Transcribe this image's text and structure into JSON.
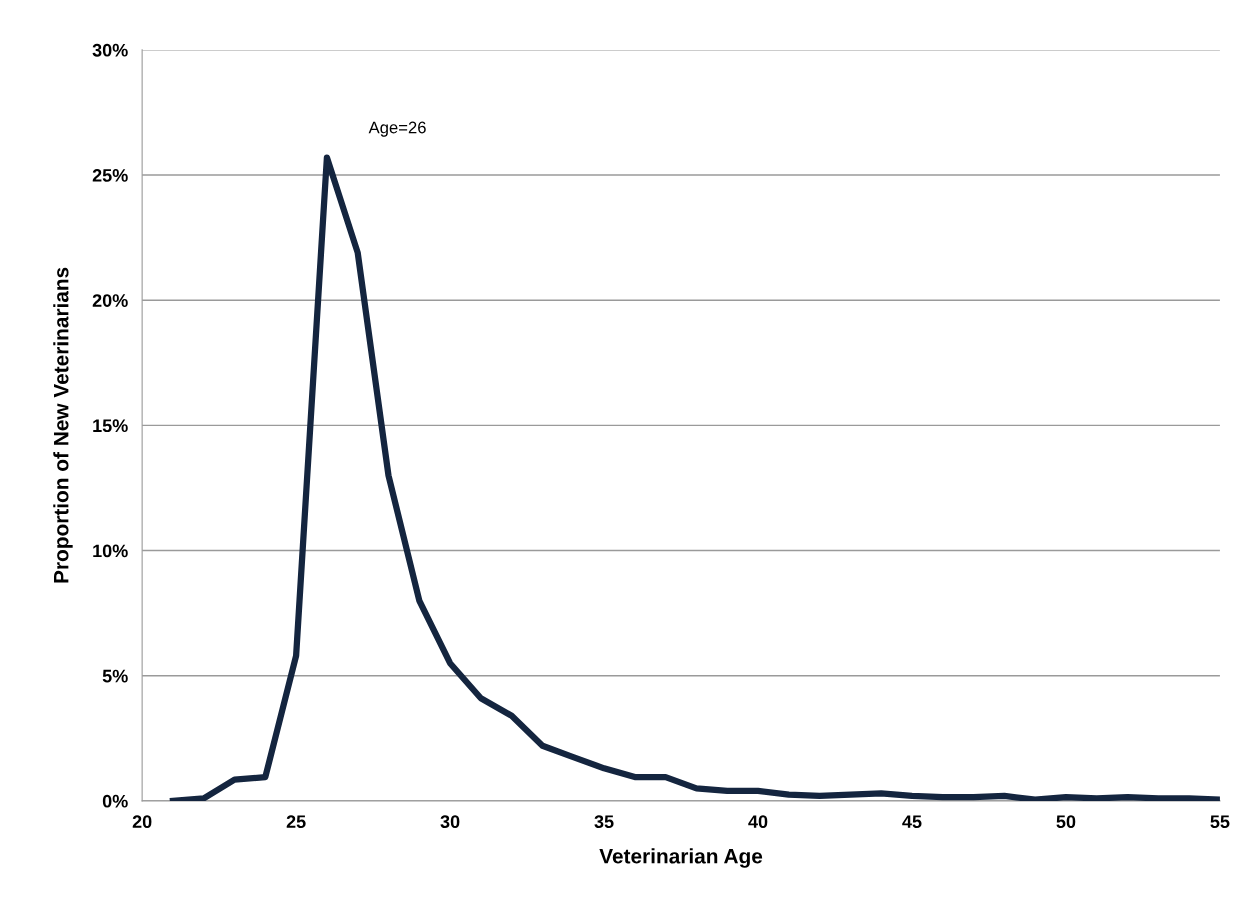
{
  "chart_data": {
    "type": "line",
    "xlabel": "Veterinarian Age",
    "ylabel": "Proportion of New Veterinarians",
    "x": [
      21,
      22,
      23,
      24,
      25,
      26,
      27,
      28,
      29,
      30,
      31,
      32,
      33,
      34,
      35,
      36,
      37,
      38,
      39,
      40,
      41,
      42,
      43,
      44,
      45,
      46,
      47,
      48,
      49,
      50,
      51,
      52,
      53,
      54,
      55
    ],
    "series": [
      {
        "color": "#14253f",
        "values": [
          0,
          0.1,
          0.85,
          0.95,
          5.8,
          25.7,
          21.9,
          13.0,
          8.0,
          5.5,
          4.1,
          3.4,
          2.2,
          1.75,
          1.3,
          0.95,
          0.95,
          0.5,
          0.4,
          0.4,
          0.25,
          0.2,
          0.25,
          0.3,
          0.2,
          0.15,
          0.15,
          0.2,
          0.05,
          0.15,
          0.1,
          0.15,
          0.1,
          0.1,
          0.05
        ]
      }
    ],
    "xlim": [
      20,
      55
    ],
    "xticks": [
      20,
      25,
      30,
      35,
      40,
      45,
      50,
      55
    ],
    "ylim": [
      0,
      30
    ],
    "yticks": [
      {
        "value": 0,
        "label": "0%"
      },
      {
        "value": 5,
        "label": "5%"
      },
      {
        "value": 10,
        "label": "10%"
      },
      {
        "value": 15,
        "label": "15%"
      },
      {
        "value": 20,
        "label": "20%"
      },
      {
        "value": 25,
        "label": "25%"
      },
      {
        "value": 30,
        "label": "30%"
      }
    ],
    "grid": "y",
    "legend": false,
    "marker": "none",
    "line_style": "solid",
    "annotations": [
      {
        "text": "Age=26",
        "x": 26,
        "y": 25.7
      }
    ]
  }
}
